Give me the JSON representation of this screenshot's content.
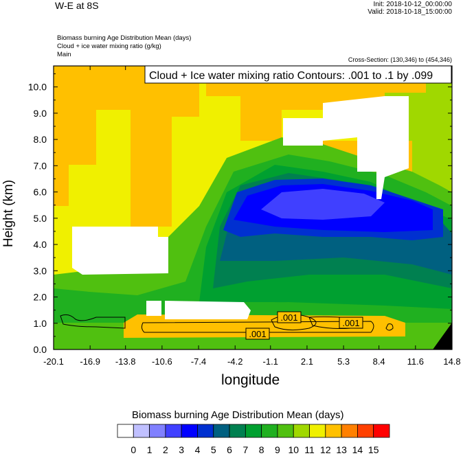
{
  "header": {
    "title": "W-E at 8S",
    "init": "Init: 2018-10-12_00:00:00",
    "valid": "Valid: 2018-10-18_15:00:00",
    "field1": "Biomass burning Age Distribution Mean   (days)",
    "field2": "Cloud + ice water mixing ratio   (g/kg)",
    "field3": "Main",
    "cross_section": "Cross-Section: (130,346) to (454,346)"
  },
  "chart_data": {
    "type": "heatmap",
    "contour_box": "Cloud + Ice water mixing ratio Contours: .001 to .1 by .099",
    "xlabel": "longitude",
    "ylabel": "Height (km)",
    "x_ticks": [
      "-20.1",
      "-16.9",
      "-13.8",
      "-10.6",
      "-7.4",
      "-4.2",
      "-1.1",
      "2.1",
      "5.3",
      "8.4",
      "11.6",
      "14.8"
    ],
    "y_ticks": [
      "0.0",
      "1.0",
      "2.0",
      "3.0",
      "4.0",
      "5.0",
      "6.0",
      "7.0",
      "8.0",
      "9.0",
      "10.0"
    ],
    "xlim": [
      -20.1,
      14.8
    ],
    "ylim": [
      0,
      10.8
    ],
    "contour_labels": [
      ".001",
      ".001",
      ".001"
    ],
    "colorbar": {
      "title": "Biomass burning Age Distribution Mean  (days)",
      "labels": [
        "0",
        "1",
        "2",
        "3",
        "4",
        "5",
        "6",
        "7",
        "8",
        "9",
        "10",
        "11",
        "12",
        "13",
        "14",
        "15"
      ],
      "colors": [
        "#ffffff",
        "#c0c0ff",
        "#8080ff",
        "#4040ff",
        "#0000ff",
        "#0030d0",
        "#006080",
        "#008050",
        "#00a030",
        "#20b020",
        "#50c010",
        "#a0d800",
        "#f0f000",
        "#ffc000",
        "#ff8000",
        "#ff4000",
        "#ff0000"
      ]
    }
  }
}
